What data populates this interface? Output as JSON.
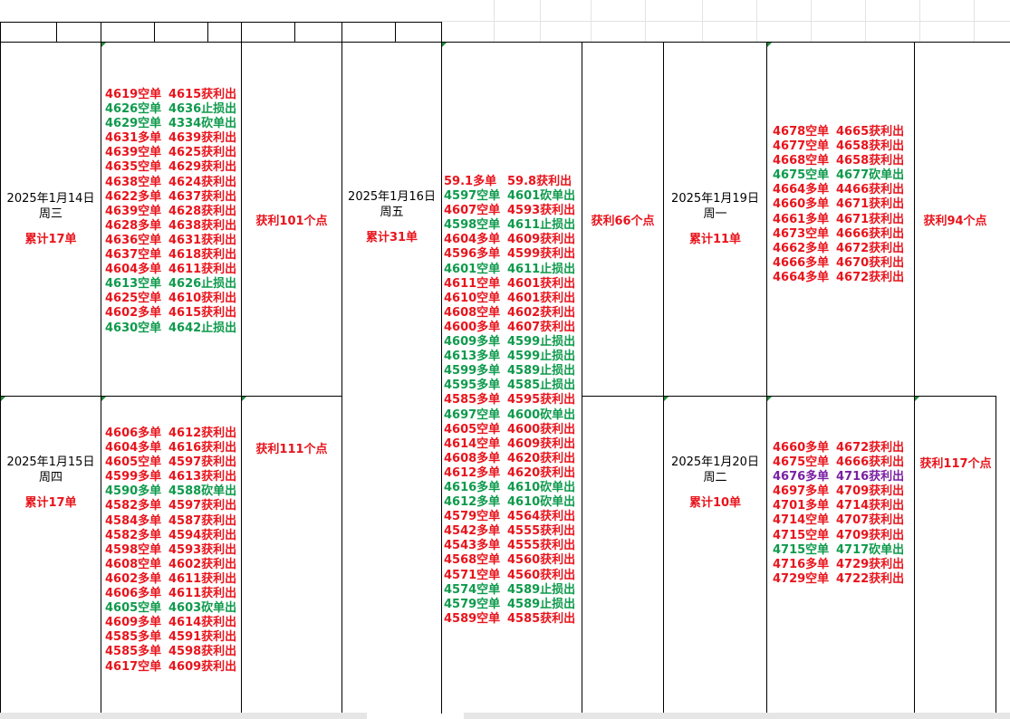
{
  "colors": {
    "red": "#e8141c",
    "green": "#0e9a4c",
    "purple": "#7a1fa3",
    "grid": "#000000"
  },
  "days": [
    {
      "id": "d14",
      "date": "2025年1月14日",
      "weekday": "周三",
      "total": "累计17单",
      "profit": "获利101个点",
      "trades": [
        {
          "open": "4619空单",
          "close": "4615获利出",
          "color": "red"
        },
        {
          "open": "4626空单",
          "close": "4636止损出",
          "color": "green"
        },
        {
          "open": "4629空单",
          "close": "4334砍单出",
          "color": "green"
        },
        {
          "open": "4631多单",
          "close": "4639获利出",
          "color": "red"
        },
        {
          "open": "4639空单",
          "close": "4625获利出",
          "color": "red"
        },
        {
          "open": "4635空单",
          "close": "4629获利出",
          "color": "red"
        },
        {
          "open": "4638空单",
          "close": "4624获利出",
          "color": "red"
        },
        {
          "open": "4622多单",
          "close": "4637获利出",
          "color": "red"
        },
        {
          "open": "4639空单",
          "close": "4628获利出",
          "color": "red"
        },
        {
          "open": "4628多单",
          "close": "4638获利出",
          "color": "red"
        },
        {
          "open": "4636空单",
          "close": "4631获利出",
          "color": "red"
        },
        {
          "open": "4637空单",
          "close": "4618获利出",
          "color": "red"
        },
        {
          "open": "4604多单",
          "close": "4611获利出",
          "color": "red"
        },
        {
          "open": "4613空单",
          "close": "4626止损出",
          "color": "green"
        },
        {
          "open": "4625空单",
          "close": "4610获利出",
          "color": "red"
        },
        {
          "open": "4602多单",
          "close": "4615获利出",
          "color": "red"
        },
        {
          "open": "4630空单",
          "close": "4642止损出",
          "color": "green"
        }
      ]
    },
    {
      "id": "d15",
      "date": "2025年1月15日",
      "weekday": "周四",
      "total": "累计17单",
      "profit": "获利111个点",
      "trades": [
        {
          "open": "4606多单",
          "close": "4612获利出",
          "color": "red"
        },
        {
          "open": "4604多单",
          "close": "4616获利出",
          "color": "red"
        },
        {
          "open": "4605空单",
          "close": "4597获利出",
          "color": "red"
        },
        {
          "open": "4599多单",
          "close": "4613获利出",
          "color": "red"
        },
        {
          "open": "4590多单",
          "close": "4588砍单出",
          "color": "green"
        },
        {
          "open": "4582多单",
          "close": "4597获利出",
          "color": "red"
        },
        {
          "open": "4584多单",
          "close": "4587获利出",
          "color": "red"
        },
        {
          "open": "4582多单",
          "close": "4594获利出",
          "color": "red"
        },
        {
          "open": "4598空单",
          "close": "4593获利出",
          "color": "red"
        },
        {
          "open": "4608空单",
          "close": "4602获利出",
          "color": "red"
        },
        {
          "open": "4602多单",
          "close": "4611获利出",
          "color": "red"
        },
        {
          "open": "4606多单",
          "close": "4611获利出",
          "color": "red"
        },
        {
          "open": "4605空单",
          "close": "4603砍单出",
          "color": "green"
        },
        {
          "open": "4609多单",
          "close": "4614获利出",
          "color": "red"
        },
        {
          "open": "4585多单",
          "close": "4591获利出",
          "color": "red"
        },
        {
          "open": "4585多单",
          "close": "4598获利出",
          "color": "red"
        },
        {
          "open": "4617空单",
          "close": "4609获利出",
          "color": "red"
        }
      ]
    },
    {
      "id": "d16",
      "date": "2025年1月16日",
      "weekday": "周五",
      "total": "累计31单",
      "profit": "获利66个点",
      "trades": [
        {
          "open": "59.1多单",
          "close": "59.8获利出",
          "color": "red"
        },
        {
          "open": "4597空单",
          "close": "4601砍单出",
          "color": "green"
        },
        {
          "open": "4607空单",
          "close": "4593获利出",
          "color": "red"
        },
        {
          "open": "4598空单",
          "close": "4611止损出",
          "color": "green"
        },
        {
          "open": "4604多单",
          "close": "4609获利出",
          "color": "red"
        },
        {
          "open": "4596多单",
          "close": "4599获利出",
          "color": "red"
        },
        {
          "open": "4601空单",
          "close": "4611止损出",
          "color": "green"
        },
        {
          "open": "4611空单",
          "close": "4601获利出",
          "color": "red"
        },
        {
          "open": "4610空单",
          "close": "4601获利出",
          "color": "red"
        },
        {
          "open": "4608空单",
          "close": "4602获利出",
          "color": "red"
        },
        {
          "open": "4600多单",
          "close": "4607获利出",
          "color": "red"
        },
        {
          "open": "4609多单",
          "close": "4599止损出",
          "color": "green"
        },
        {
          "open": "4613多单",
          "close": "4599止损出",
          "color": "green"
        },
        {
          "open": "4599多单",
          "close": "4589止损出",
          "color": "green"
        },
        {
          "open": "4595多单",
          "close": "4585止损出",
          "color": "green"
        },
        {
          "open": "4585多单",
          "close": "4595获利出",
          "color": "red"
        },
        {
          "open": "4697空单",
          "close": "4600砍单出",
          "color": "green"
        },
        {
          "open": "4605空单",
          "close": "4600获利出",
          "color": "red"
        },
        {
          "open": "4614空单",
          "close": "4609获利出",
          "color": "red"
        },
        {
          "open": "4608多单",
          "close": "4620获利出",
          "color": "red"
        },
        {
          "open": "4612多单",
          "close": "4620获利出",
          "color": "red"
        },
        {
          "open": "4616多单",
          "close": "4610砍单出",
          "color": "green"
        },
        {
          "open": "4612多单",
          "close": "4610砍单出",
          "color": "green"
        },
        {
          "open": "4579空单",
          "close": "4564获利出",
          "color": "red"
        },
        {
          "open": "4542多单",
          "close": "4555获利出",
          "color": "red"
        },
        {
          "open": "4543多单",
          "close": "4555获利出",
          "color": "red"
        },
        {
          "open": "4568空单",
          "close": "4560获利出",
          "color": "red"
        },
        {
          "open": "4571空单",
          "close": "4560获利出",
          "color": "red"
        },
        {
          "open": "4574空单",
          "close": "4589止损出",
          "color": "green"
        },
        {
          "open": "4579空单",
          "close": "4589止损出",
          "color": "green"
        },
        {
          "open": "4589空单",
          "close": "4585获利出",
          "color": "red"
        }
      ]
    },
    {
      "id": "d19",
      "date": "2025年1月19日",
      "weekday": "周一",
      "total": "累计11单",
      "profit": "获利94个点",
      "trades": [
        {
          "open": "4678空单",
          "close": "4665获利出",
          "color": "red"
        },
        {
          "open": "4677空单",
          "close": "4658获利出",
          "color": "red"
        },
        {
          "open": "4668空单",
          "close": "4658获利出",
          "color": "red"
        },
        {
          "open": "4675空单",
          "close": "4677砍单出",
          "color": "green"
        },
        {
          "open": "4664多单",
          "close": "4466获利出",
          "color": "red"
        },
        {
          "open": "4660多单",
          "close": "4671获利出",
          "color": "red"
        },
        {
          "open": "4661多单",
          "close": "4671获利出",
          "color": "red"
        },
        {
          "open": "4673空单",
          "close": "4666获利出",
          "color": "red"
        },
        {
          "open": "4662多单",
          "close": "4672获利出",
          "color": "red"
        },
        {
          "open": "4666多单",
          "close": "4670获利出",
          "color": "red"
        },
        {
          "open": "4664多单",
          "close": "4672获利出",
          "color": "red"
        }
      ]
    },
    {
      "id": "d20",
      "date": "2025年1月20日",
      "weekday": "周二",
      "total": "累计10单",
      "profit": "获利117个点",
      "trades": [
        {
          "open": "4660多单",
          "close": "4672获利出",
          "color": "red"
        },
        {
          "open": "4675空单",
          "close": "4666获利出",
          "color": "red"
        },
        {
          "open": "4676多单",
          "close": "4716获利出",
          "color": "purple"
        },
        {
          "open": "4697多单",
          "close": "4709获利出",
          "color": "red"
        },
        {
          "open": "4701多单",
          "close": "4714获利出",
          "color": "red"
        },
        {
          "open": "4714空单",
          "close": "4707获利出",
          "color": "red"
        },
        {
          "open": "4715空单",
          "close": "4709获利出",
          "color": "red"
        },
        {
          "open": "4715空单",
          "close": "4717砍单出",
          "color": "green"
        },
        {
          "open": "4716多单",
          "close": "4729获利出",
          "color": "red"
        },
        {
          "open": "4729空单",
          "close": "4722获利出",
          "color": "red"
        }
      ]
    }
  ]
}
